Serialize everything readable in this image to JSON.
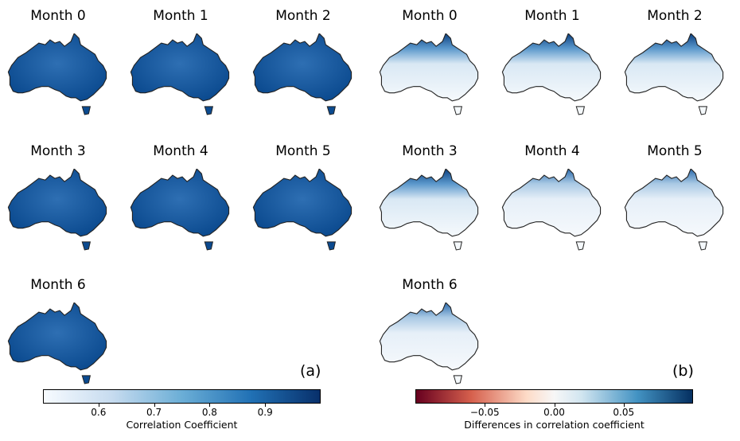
{
  "chart_data": [
    {
      "type": "map-grid",
      "panel_label": "(a)",
      "panels": [
        {
          "title": "Month 0",
          "mean_value": 0.9
        },
        {
          "title": "Month 1",
          "mean_value": 0.87
        },
        {
          "title": "Month 2",
          "mean_value": 0.89
        },
        {
          "title": "Month 3",
          "mean_value": 0.87
        },
        {
          "title": "Month 4",
          "mean_value": 0.86
        },
        {
          "title": "Month 5",
          "mean_value": 0.87
        },
        {
          "title": "Month 6",
          "mean_value": 0.86
        }
      ],
      "colorbar": {
        "label": "Correlation Coefficient",
        "range": [
          0.5,
          1.0
        ],
        "ticks": [
          0.6,
          0.7,
          0.8,
          0.9
        ],
        "tick_labels": [
          "0.6",
          "0.7",
          "0.8",
          "0.9"
        ],
        "colormap": "Blues",
        "colors": [
          "#f7fbff",
          "#08306b"
        ]
      }
    },
    {
      "type": "map-grid",
      "panel_label": "(b)",
      "panels": [
        {
          "title": "Month 0",
          "north_value": 0.09
        },
        {
          "title": "Month 1",
          "north_value": 0.08
        },
        {
          "title": "Month 2",
          "north_value": 0.09
        },
        {
          "title": "Month 3",
          "north_value": 0.08
        },
        {
          "title": "Month 4",
          "north_value": 0.07
        },
        {
          "title": "Month 5",
          "north_value": 0.07
        },
        {
          "title": "Month 6",
          "north_value": 0.06
        }
      ],
      "colorbar": {
        "label": "Differences in correlation coefficient",
        "range": [
          -0.1,
          0.1
        ],
        "ticks": [
          -0.05,
          0.0,
          0.05
        ],
        "tick_labels": [
          "−0.05",
          "0.00",
          "0.05"
        ],
        "colormap": "RdBu",
        "colors": [
          "#67001f",
          "#f7f7f7",
          "#053061"
        ]
      }
    }
  ]
}
